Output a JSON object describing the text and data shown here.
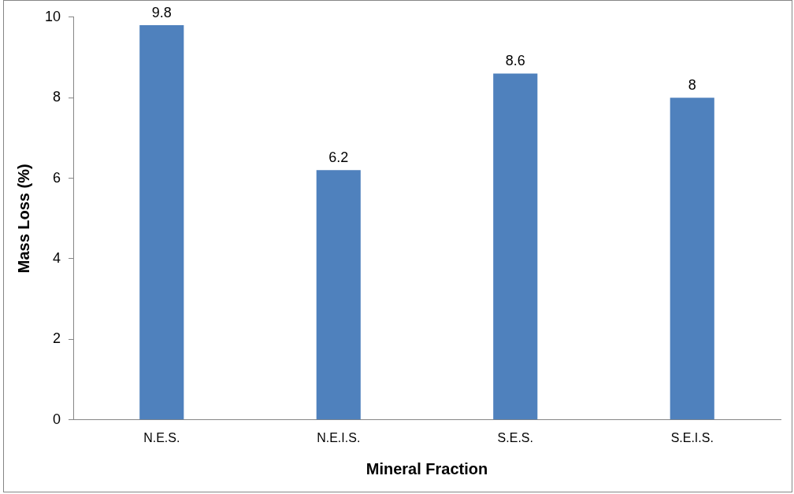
{
  "chart_data": {
    "type": "bar",
    "xlabel": "Mineral Fraction",
    "ylabel": "Mass Loss (%)",
    "categories": [
      "N.E.S.",
      "N.E.I.S.",
      "S.E.S.",
      "S.E.I.S."
    ],
    "values": [
      9.8,
      6.2,
      8.6,
      8
    ],
    "color": "#4f81bd",
    "ylim": [
      0,
      10
    ],
    "yticks": [
      0,
      2,
      4,
      6,
      8,
      10
    ],
    "grid": false,
    "data_labels": true,
    "legend": false
  }
}
